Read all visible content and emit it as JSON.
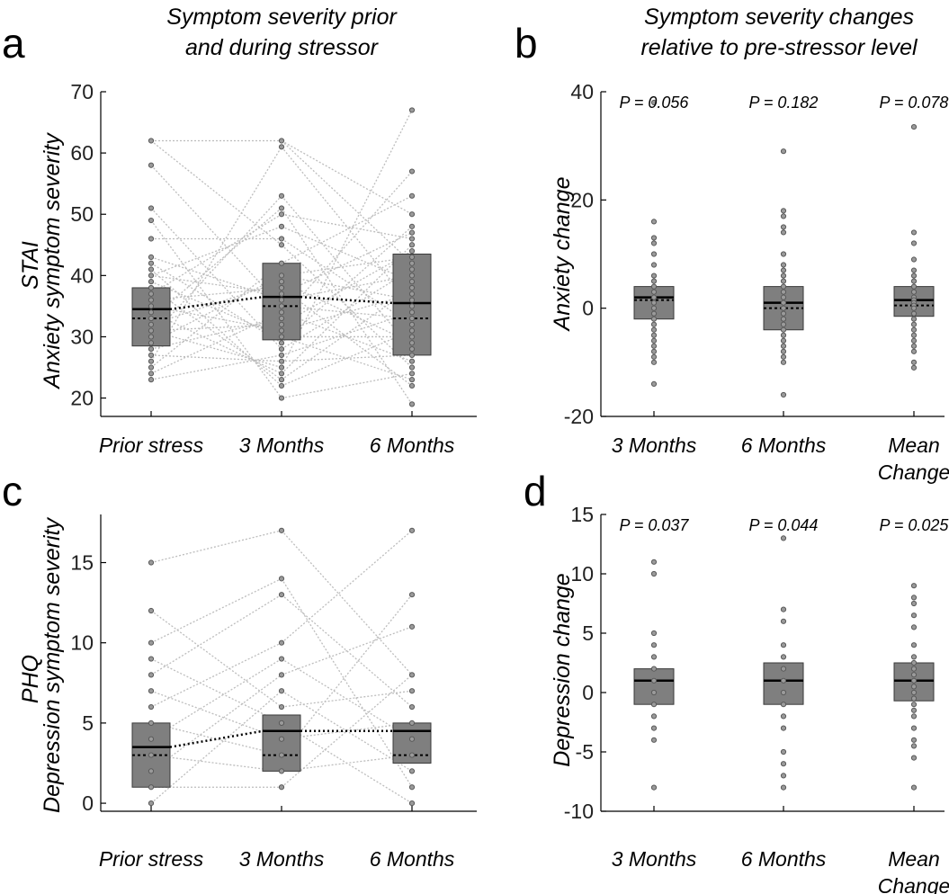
{
  "panels": {
    "a": {
      "label": "a",
      "title_line1": "Symptom severity prior",
      "title_line2": "and during stressor"
    },
    "b": {
      "label": "b",
      "title_line1": "Symptom severity changes",
      "title_line2": "relative to pre-stressor level"
    },
    "c": {
      "label": "c"
    },
    "d": {
      "label": "d"
    }
  },
  "row_labels": {
    "top": "STAI",
    "bottom": "PHQ"
  },
  "colors": {
    "box": "#7f7f7f",
    "dot": "#595959",
    "line": "#bdbdbd",
    "axis": "#000000"
  },
  "chart_data": [
    {
      "id": "a",
      "type": "box",
      "ylabel": "Anxiety symptom severity",
      "categories": [
        "Prior stress",
        "3 Months",
        "6 Months"
      ],
      "ylim": [
        17,
        70
      ],
      "yticks": [
        20,
        30,
        40,
        50,
        60,
        70
      ],
      "boxes": [
        {
          "q1": 28.5,
          "q3": 38,
          "median": 34.5,
          "mean": 33
        },
        {
          "q1": 29.5,
          "q3": 42,
          "median": 36.5,
          "mean": 35
        },
        {
          "q1": 27,
          "q3": 43.5,
          "median": 35.5,
          "mean": 33
        }
      ],
      "points": [
        [
          62,
          58,
          51,
          49,
          46,
          43,
          42,
          41,
          40,
          39,
          38,
          37,
          36,
          35,
          34,
          33,
          32,
          31,
          30,
          29,
          28,
          27,
          26,
          25,
          24,
          23
        ],
        [
          62,
          61,
          53,
          51,
          50,
          48,
          46,
          45,
          42,
          40,
          39,
          38,
          37,
          36,
          35,
          34,
          33,
          32,
          31,
          30,
          29,
          28,
          27,
          26,
          25,
          24,
          23,
          22,
          20
        ],
        [
          67,
          57,
          53,
          50,
          48,
          47,
          46,
          45,
          44,
          43,
          42,
          41,
          40,
          39,
          38,
          37,
          36,
          35,
          34,
          33,
          32,
          31,
          30,
          29,
          28,
          27,
          26,
          25,
          24,
          23,
          22,
          19
        ]
      ],
      "mean_line": true,
      "median_line": true
    },
    {
      "id": "b",
      "type": "box",
      "ylabel": "Anxiety change",
      "categories": [
        "3 Months",
        "6 Months",
        "Mean|Change"
      ],
      "ylim": [
        -20,
        40
      ],
      "yticks": [
        -20,
        0,
        20,
        40
      ],
      "pvalues": [
        "P = 0.056",
        "P = 0.182",
        "P = 0.078"
      ],
      "boxes": [
        {
          "q1": -2,
          "q3": 4,
          "median": 2,
          "mean": 1.5
        },
        {
          "q1": -4,
          "q3": 4,
          "median": 1,
          "mean": 0
        },
        {
          "q1": -1.5,
          "q3": 4,
          "median": 1.5,
          "mean": 0.5
        }
      ],
      "points": [
        [
          38,
          16,
          13,
          12,
          10,
          8,
          6,
          5,
          4,
          3,
          2,
          1,
          0,
          -1,
          -2,
          -3,
          -4,
          -5,
          -6,
          -7,
          -8,
          -9,
          -10,
          -14
        ],
        [
          29,
          18,
          17,
          15,
          14,
          10,
          8,
          7,
          6,
          5,
          4,
          3,
          2,
          1,
          0,
          -1,
          -2,
          -3,
          -4,
          -5,
          -6,
          -7,
          -8,
          -9,
          -10,
          -16
        ],
        [
          33.5,
          14,
          12,
          9,
          7,
          6,
          5,
          4,
          3,
          2,
          1.5,
          1,
          0.5,
          0,
          -1,
          -2,
          -3,
          -4,
          -5,
          -6,
          -7,
          -8,
          -10,
          -11
        ]
      ],
      "mean_line": false,
      "median_line": false
    },
    {
      "id": "c",
      "type": "box",
      "ylabel": "Depression symptom severity",
      "categories": [
        "Prior stress",
        "3 Months",
        "6 Months"
      ],
      "ylim": [
        -0.5,
        18
      ],
      "yticks": [
        0,
        5,
        10,
        15
      ],
      "boxes": [
        {
          "q1": 1,
          "q3": 5,
          "median": 3.5,
          "mean": 3
        },
        {
          "q1": 2,
          "q3": 5.5,
          "median": 4.5,
          "mean": 3
        },
        {
          "q1": 2.5,
          "q3": 5,
          "median": 4.5,
          "mean": 3
        }
      ],
      "points": [
        [
          15,
          12,
          10,
          9,
          8,
          7,
          6,
          5,
          4,
          3,
          2,
          1,
          0
        ],
        [
          17,
          14,
          13,
          10,
          9,
          8,
          7,
          6,
          5,
          4,
          3,
          2,
          1
        ],
        [
          17,
          13,
          11,
          8,
          7,
          6,
          5,
          4,
          3,
          2,
          1,
          0
        ]
      ],
      "mean_line": true,
      "median_line": true
    },
    {
      "id": "d",
      "type": "box",
      "ylabel": "Depression change",
      "categories": [
        "3 Months",
        "6 Months",
        "Mean|Change"
      ],
      "ylim": [
        -10,
        15
      ],
      "yticks": [
        -10,
        -5,
        0,
        5,
        10,
        15
      ],
      "pvalues": [
        "P = 0.037",
        "P = 0.044",
        "P = 0.025"
      ],
      "boxes": [
        {
          "q1": -1,
          "q3": 2,
          "median": 1,
          "mean": 1
        },
        {
          "q1": -1,
          "q3": 2.5,
          "median": 1,
          "mean": 1
        },
        {
          "q1": -0.7,
          "q3": 2.5,
          "median": 1,
          "mean": 1
        }
      ],
      "points": [
        [
          11,
          10,
          5,
          4,
          3,
          2,
          1,
          0,
          -1,
          -2,
          -3,
          -4,
          -8
        ],
        [
          13,
          7,
          6,
          4,
          3,
          2,
          1,
          0,
          -1,
          -2,
          -3,
          -5,
          -6,
          -7,
          -8
        ],
        [
          9,
          8,
          7.5,
          6.5,
          5.5,
          4,
          3,
          2.5,
          2,
          1.5,
          1,
          0.5,
          0,
          -0.5,
          -1,
          -1.5,
          -2,
          -3,
          -4,
          -4.5,
          -5.5,
          -8
        ]
      ],
      "mean_line": false,
      "median_line": false
    }
  ]
}
